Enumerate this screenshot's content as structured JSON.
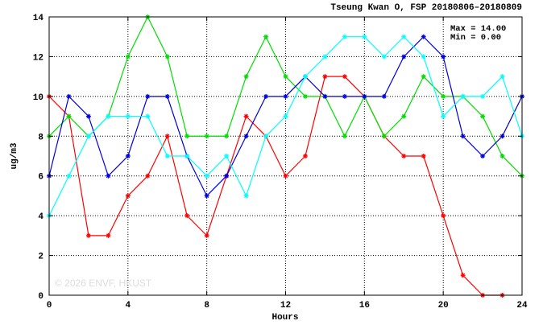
{
  "chart_data": {
    "type": "line",
    "title": "Tseung Kwan O, FSP 20180806–20180809",
    "xlabel": "Hours",
    "ylabel": "ug/m3",
    "xlim": [
      0,
      24
    ],
    "ylim": [
      0,
      14
    ],
    "x_ticks": [
      0,
      4,
      8,
      12,
      16,
      20,
      24
    ],
    "y_ticks": [
      0,
      2,
      4,
      6,
      8,
      10,
      12,
      14
    ],
    "grid": true,
    "stats": {
      "max_label": "Max = 14.00",
      "min_label": "Min =  0.00"
    },
    "watermark": "© 2026  ENVF, HKUST",
    "x": [
      0,
      1,
      2,
      3,
      4,
      5,
      6,
      7,
      8,
      9,
      10,
      11,
      12,
      13,
      14,
      15,
      16,
      17,
      18,
      19,
      20,
      21,
      22,
      23,
      24
    ],
    "series": [
      {
        "color": "#ff0000",
        "values": [
          10,
          9,
          3,
          3,
          5,
          6,
          8,
          4,
          3,
          6,
          9,
          8,
          6,
          7,
          11,
          11,
          10,
          8,
          7,
          7,
          4,
          1,
          0,
          0,
          null
        ]
      },
      {
        "color": "#00dd00",
        "values": [
          8,
          9,
          8,
          9,
          12,
          14,
          12,
          8,
          8,
          8,
          11,
          13,
          11,
          10,
          10,
          8,
          10,
          8,
          9,
          11,
          10,
          10,
          9,
          7,
          6
        ]
      },
      {
        "color": "#0000dd",
        "values": [
          6,
          10,
          9,
          6,
          7,
          10,
          10,
          7,
          5,
          6,
          8,
          10,
          10,
          11,
          10,
          10,
          10,
          10,
          12,
          13,
          12,
          8,
          7,
          8,
          10
        ]
      },
      {
        "color": "#00ffff",
        "values": [
          4,
          6,
          8,
          9,
          9,
          9,
          7,
          7,
          6,
          7,
          5,
          8,
          9,
          11,
          12,
          13,
          13,
          12,
          13,
          12,
          9,
          10,
          10,
          11,
          8
        ]
      }
    ]
  }
}
